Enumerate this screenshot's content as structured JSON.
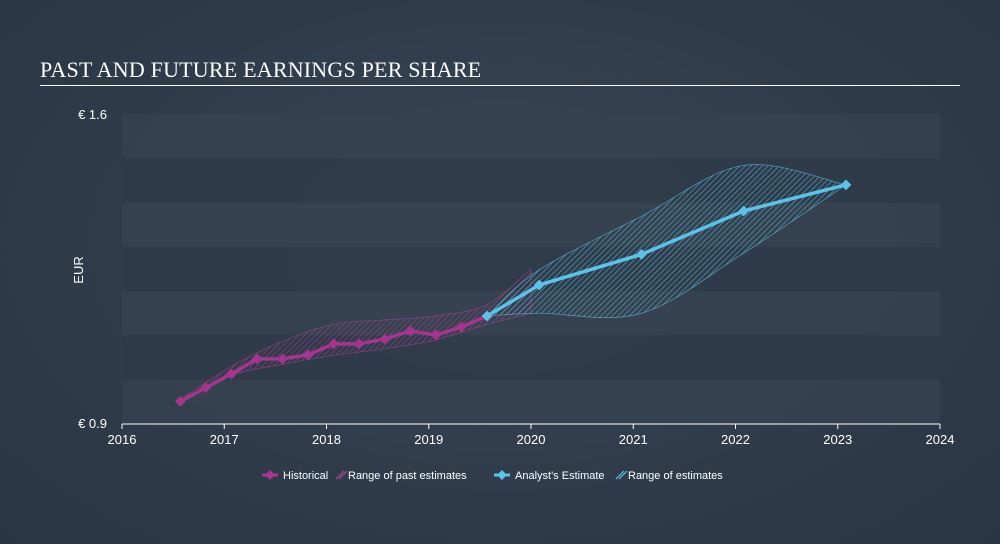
{
  "chart_data": {
    "type": "line",
    "title": "PAST AND FUTURE EARNINGS PER SHARE",
    "ylabel": "EUR",
    "xlabel": "",
    "xlim": [
      2016,
      2024
    ],
    "ylim": [
      0.9,
      1.6
    ],
    "y_tick_labels": [
      {
        "value": 1.6,
        "label": "€ 1.6"
      },
      {
        "value": 0.9,
        "label": "€ 0.9"
      }
    ],
    "x_ticks": [
      2016,
      2017,
      2018,
      2019,
      2020,
      2021,
      2022,
      2023,
      2024
    ],
    "grid": "horizontal bands",
    "legend_position": "bottom-center",
    "colors": {
      "historical": "#a7348f",
      "historical_range": "#b24399",
      "estimate": "#5bc3ea",
      "estimate_range": "#5bc3ea",
      "band_dark": "#2f3b49",
      "band_light": "#36424f"
    },
    "series": [
      {
        "name": "Historical",
        "x": [
          2016.57,
          2016.82,
          2017.07,
          2017.32,
          2017.57,
          2017.82,
          2018.07,
          2018.32,
          2018.57,
          2018.82,
          2019.07,
          2019.32,
          2019.57
        ],
        "y": [
          0.951,
          0.982,
          1.013,
          1.047,
          1.047,
          1.056,
          1.081,
          1.081,
          1.092,
          1.11,
          1.101,
          1.119,
          1.144
        ]
      },
      {
        "name": "Analyst's Estimate",
        "x": [
          2019.57,
          2020.08,
          2021.08,
          2022.08,
          2023.08
        ],
        "y": [
          1.144,
          1.214,
          1.283,
          1.381,
          1.44
        ]
      }
    ],
    "ranges": [
      {
        "name": "Range of past estimates",
        "x": [
          2016.57,
          2017.07,
          2017.57,
          2018.07,
          2018.57,
          2019.07,
          2019.57,
          2020.0
        ],
        "upper": [
          0.955,
          1.03,
          1.087,
          1.125,
          1.135,
          1.144,
          1.17,
          1.25
        ],
        "lower": [
          0.951,
          1.01,
          1.035,
          1.055,
          1.07,
          1.09,
          1.125,
          1.15
        ]
      },
      {
        "name": "Range of estimates",
        "x": [
          2019.57,
          2020.08,
          2021.08,
          2022.08,
          2023.08
        ],
        "upper": [
          1.144,
          1.248,
          1.369,
          1.484,
          1.44
        ],
        "lower": [
          1.144,
          1.15,
          1.15,
          1.286,
          1.44
        ]
      }
    ]
  },
  "legend": {
    "historical": "Historical",
    "past_range": "Range of past estimates",
    "estimate": "Analyst's Estimate",
    "estimate_range": "Range of estimates"
  }
}
